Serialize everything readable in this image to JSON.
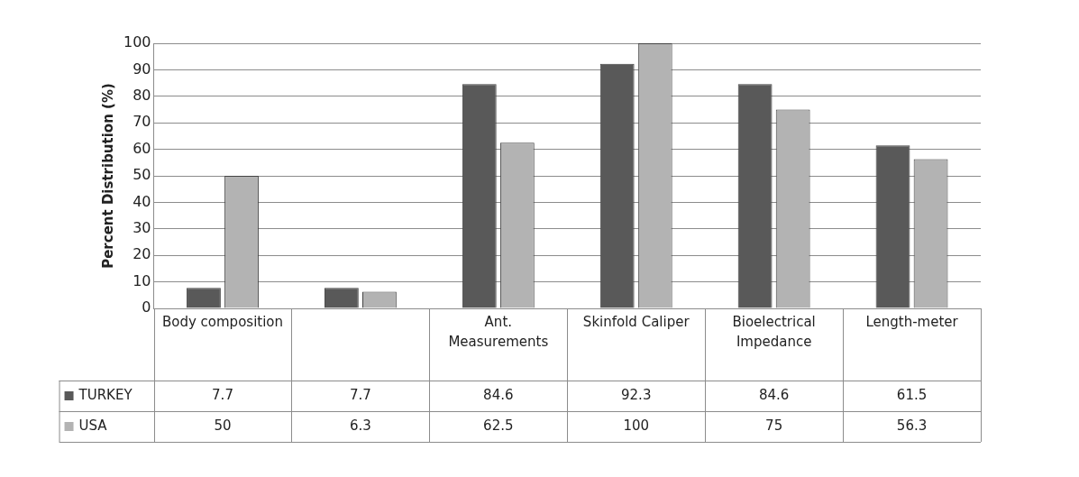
{
  "chart_data": {
    "type": "bar",
    "ylabel": "Percent Distribution (%)",
    "categories": [
      "Body composition",
      null,
      "Ant. Measurements",
      "Skinfold Caliper",
      "Bioelectrical Impedance",
      "Length-meter"
    ],
    "series": [
      {
        "name": "TURKEY",
        "color": "#595959",
        "values": [
          7.7,
          7.7,
          84.6,
          92.3,
          84.6,
          61.5
        ]
      },
      {
        "name": "USA",
        "color": "#b3b3b3",
        "values": [
          50,
          6.3,
          62.5,
          100,
          75,
          56.3
        ]
      }
    ],
    "ylim": [
      0,
      100
    ],
    "yticks": [
      0,
      10,
      20,
      30,
      40,
      50,
      60,
      70,
      80,
      90,
      100
    ],
    "grid": "y",
    "legend": "bottom",
    "data_labels": true
  }
}
